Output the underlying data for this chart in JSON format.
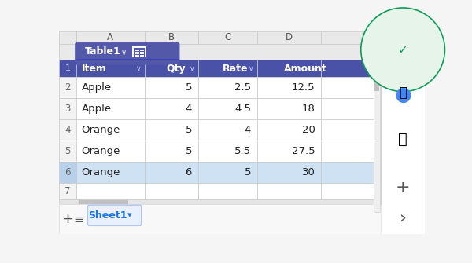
{
  "col_headers": [
    "Item",
    "Qty",
    "Rate",
    "Amount"
  ],
  "col_letters": [
    "A",
    "B",
    "C",
    "D"
  ],
  "rows": [
    [
      "Apple",
      "5",
      "2.5",
      "12.5"
    ],
    [
      "Apple",
      "4",
      "4.5",
      "18"
    ],
    [
      "Orange",
      "5",
      "4",
      "20"
    ],
    [
      "Orange",
      "5",
      "5.5",
      "27.5"
    ],
    [
      "Orange",
      "6",
      "5",
      "30"
    ]
  ],
  "row_numbers": [
    "1",
    "2",
    "3",
    "4",
    "5",
    "6",
    "7"
  ],
  "header_bg": "#4a52a8",
  "header_text": "#ffffff",
  "table_border": "#c8c8c8",
  "row_bg_normal": "#ffffff",
  "row_bg_selected": "#cfe2f3",
  "row_num_bg": "#f3f3f3",
  "row_num_selected_bg": "#b8d0ea",
  "col_header_bg": "#e9e9e9",
  "col_header_text": "#555555",
  "sheet_bg": "#f5f5f5",
  "tab_bg": "#5458a8",
  "tab_text": "#ffffff",
  "sheet_tab_bg": "#e8f0fe",
  "sheet_tab_text": "#1a73e8",
  "table1_label": "Table1",
  "sheet1_label": "Sheet1",
  "sidebar_bg": "#ffffff",
  "sidebar_border": "#e0e0e0",
  "figsize": [
    6.0,
    3.35
  ],
  "dpi": 100
}
